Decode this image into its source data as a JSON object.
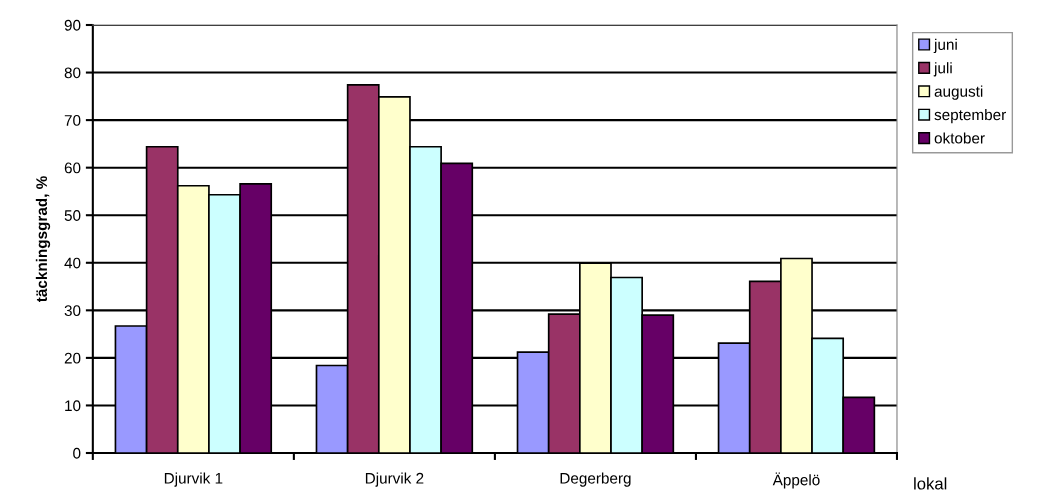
{
  "chart_data": {
    "type": "bar",
    "xlabel": "lokal",
    "ylabel": "täckningsgrad, %",
    "categories": [
      "Djurvik 1",
      "Djurvik 2",
      "Degerberg",
      "Äppelö"
    ],
    "series": [
      {
        "name": "juni",
        "color": "#9999ff",
        "values": [
          26.7,
          18.4,
          21.2,
          23.1
        ]
      },
      {
        "name": "juli",
        "color": "#993366",
        "values": [
          64.4,
          77.4,
          29.2,
          36.1
        ]
      },
      {
        "name": "augusti",
        "color": "#ffffcc",
        "values": [
          56.2,
          74.9,
          39.9,
          40.9
        ]
      },
      {
        "name": "september",
        "color": "#ccffff",
        "values": [
          54.3,
          64.4,
          36.9,
          24.1
        ]
      },
      {
        "name": "oktober",
        "color": "#660066",
        "values": [
          56.6,
          60.9,
          29.0,
          11.7
        ]
      }
    ],
    "ylim": [
      0,
      90
    ],
    "yticks": [
      0,
      10,
      20,
      30,
      40,
      50,
      60,
      70,
      80,
      90
    ],
    "grid": "y",
    "legend": "top right"
  }
}
